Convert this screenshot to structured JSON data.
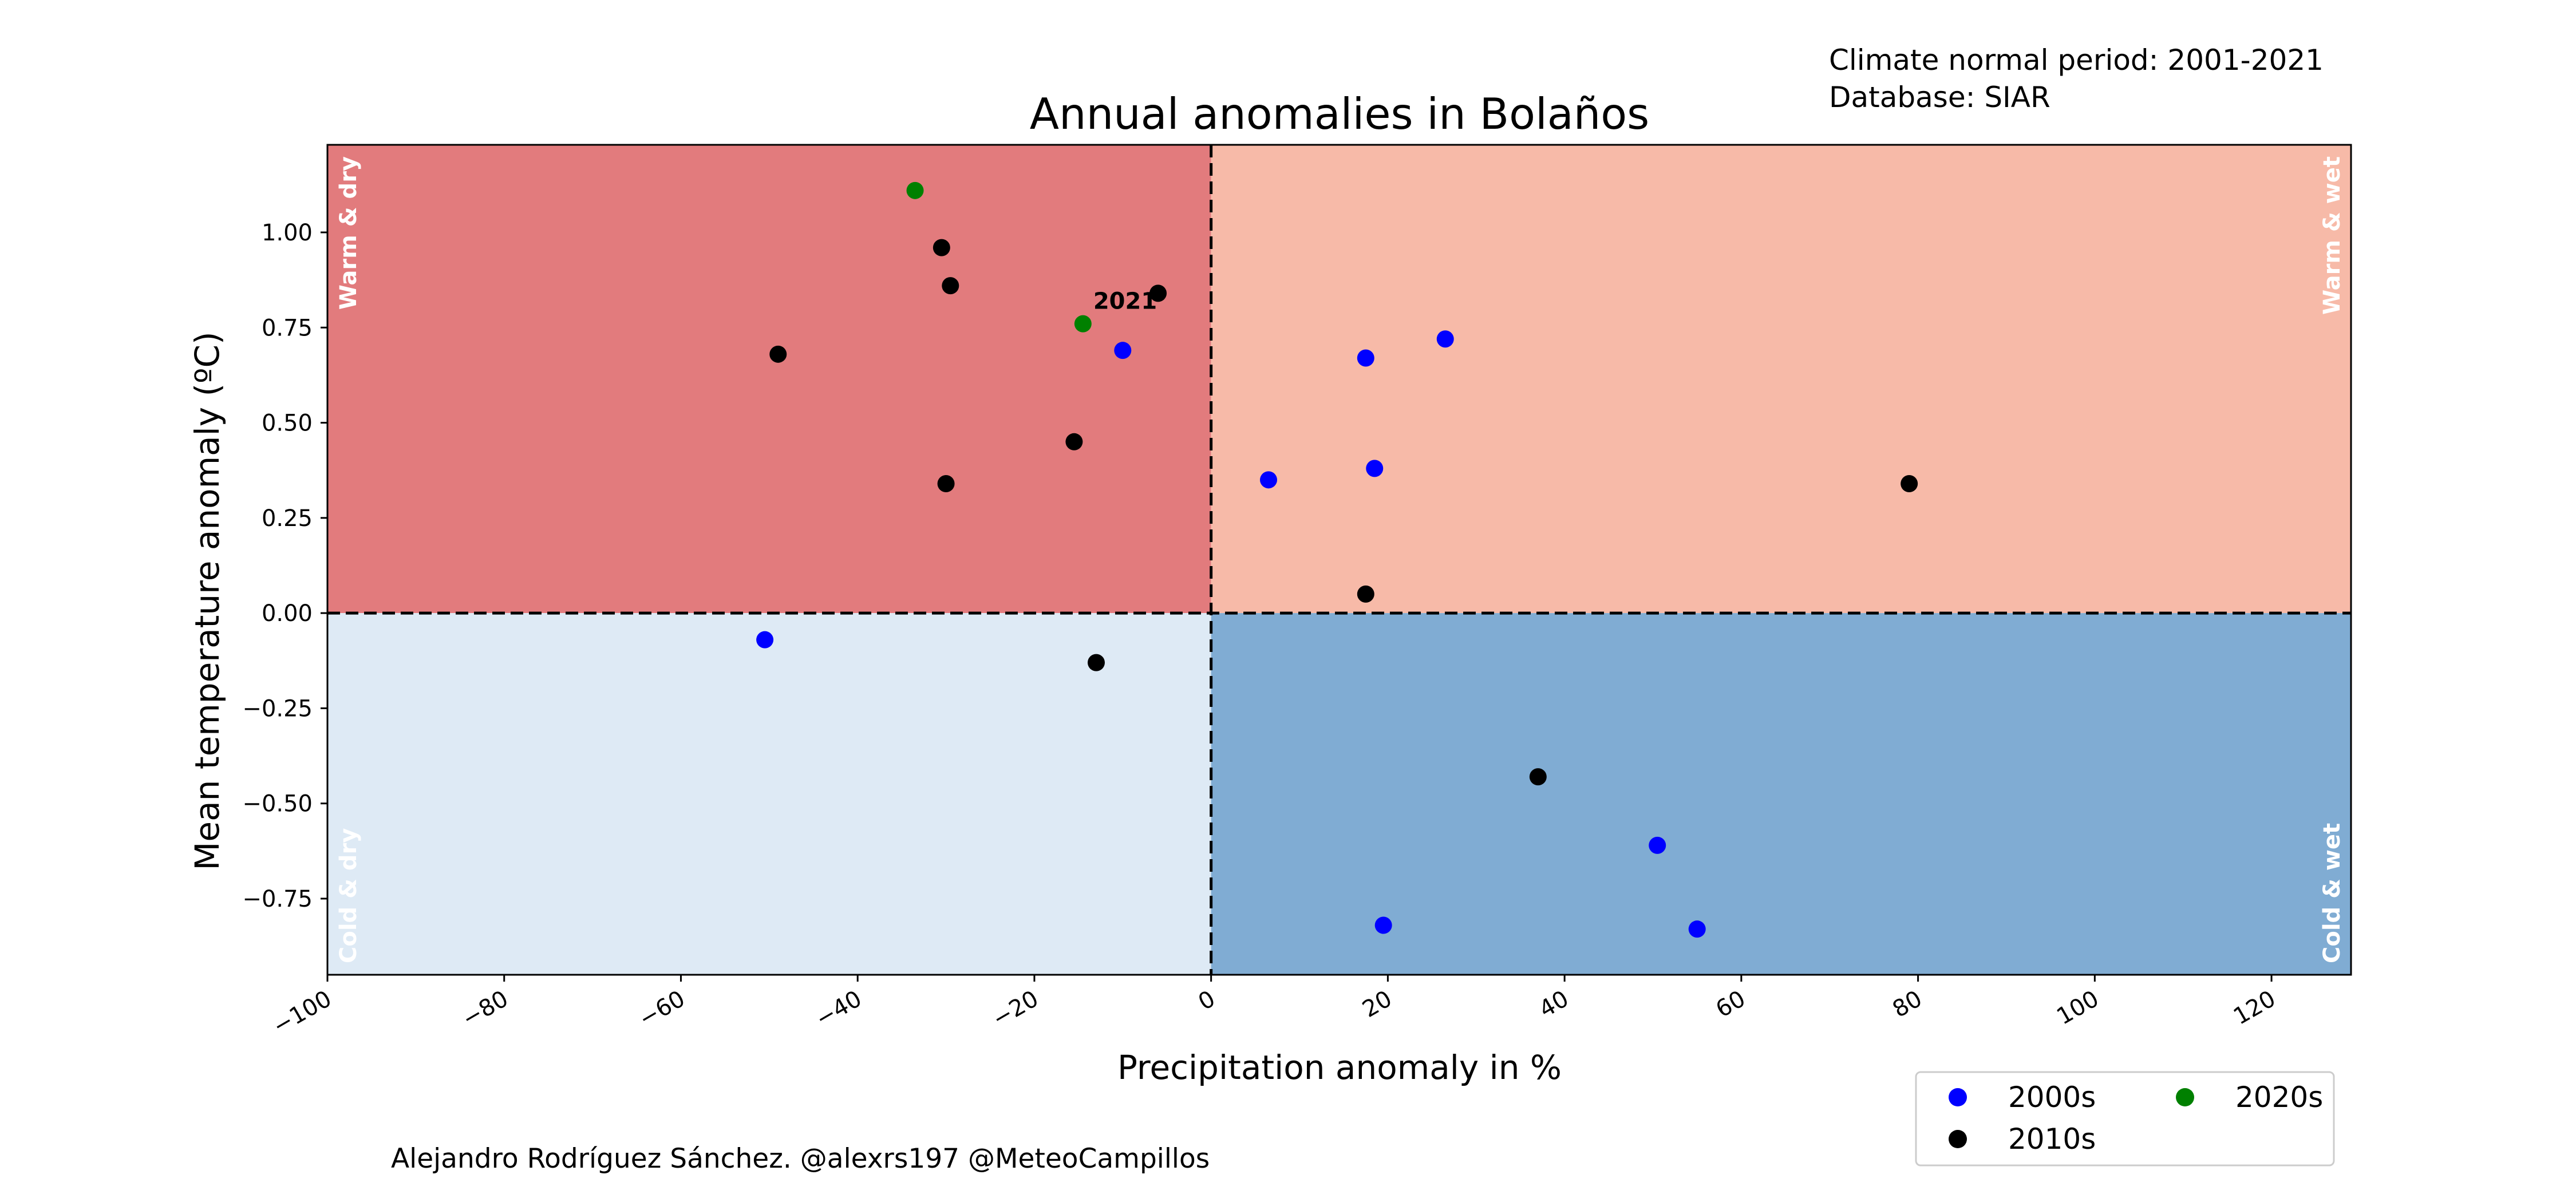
{
  "chart_data": {
    "type": "scatter",
    "title": "Annual anomalies in Bolaños",
    "xlabel": "Precipitation anomaly in %",
    "ylabel": "Mean temperature anomaly (ºC)",
    "xlim": [
      -100,
      129
    ],
    "ylim": [
      -0.95,
      1.23
    ],
    "x_ticks": [
      -100,
      -80,
      -60,
      -40,
      -20,
      0,
      20,
      40,
      60,
      80,
      100,
      120
    ],
    "x_tick_labels": [
      "−100",
      "−80",
      "−60",
      "−40",
      "−20",
      "0",
      "20",
      "40",
      "60",
      "80",
      "100",
      "120"
    ],
    "y_ticks": [
      1.0,
      0.75,
      0.5,
      0.25,
      0.0,
      -0.25,
      -0.5,
      -0.75
    ],
    "y_tick_labels": [
      "1.00",
      "0.75",
      "0.50",
      "0.25",
      "0.00",
      "−0.25",
      "−0.50",
      "−0.75"
    ],
    "grid": false,
    "legend_position": "bottom-right outside",
    "quadrants": [
      {
        "label": "Warm & dry",
        "color": "#e27b7d"
      },
      {
        "label": "Warm & wet",
        "color": "#f7baa8"
      },
      {
        "label": "Cold & dry",
        "color": "#deeaf5"
      },
      {
        "label": "Cold & wet",
        "color": "#80acd3"
      }
    ],
    "series": [
      {
        "name": "2000s",
        "color": "#0000ff",
        "points": [
          {
            "x": -10,
            "y": 0.69
          },
          {
            "x": -50.5,
            "y": -0.07
          },
          {
            "x": 6.5,
            "y": 0.35
          },
          {
            "x": 17.5,
            "y": 0.67
          },
          {
            "x": 18.5,
            "y": 0.38
          },
          {
            "x": 26.5,
            "y": 0.72
          },
          {
            "x": 19.5,
            "y": -0.82
          },
          {
            "x": 50.5,
            "y": -0.61
          },
          {
            "x": 55,
            "y": -0.83
          }
        ]
      },
      {
        "name": "2010s",
        "color": "#000000",
        "points": [
          {
            "x": -49,
            "y": 0.68
          },
          {
            "x": -30.5,
            "y": 0.96
          },
          {
            "x": -29.5,
            "y": 0.86
          },
          {
            "x": -6,
            "y": 0.84
          },
          {
            "x": -15.5,
            "y": 0.45
          },
          {
            "x": -30,
            "y": 0.34
          },
          {
            "x": -13,
            "y": -0.13
          },
          {
            "x": 17.5,
            "y": 0.05
          },
          {
            "x": 37,
            "y": -0.43
          },
          {
            "x": 79,
            "y": 0.34
          }
        ]
      },
      {
        "name": "2020s",
        "color": "#008000",
        "points": [
          {
            "x": -33.5,
            "y": 1.11
          },
          {
            "x": -14.5,
            "y": 0.76
          }
        ]
      }
    ],
    "annotations": [
      {
        "text": "2021",
        "x": -14.5,
        "y": 0.76
      }
    ]
  },
  "notes": {
    "normal_period": "Climate normal period: 2001-2021",
    "database": "Database: SIAR",
    "credit": "Alejandro Rodríguez Sánchez. @alexrs197 @MeteoCampillos"
  }
}
